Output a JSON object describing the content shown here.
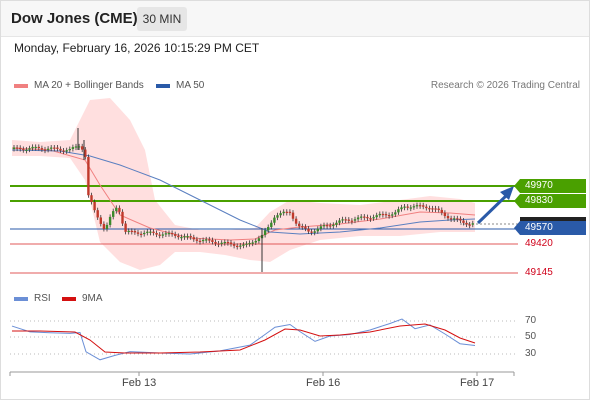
{
  "header": {
    "title": "Dow Jones (CME)",
    "timeframe": "30 MIN",
    "datetime": "Monday, February 16, 2026 10:15:29 PM CET"
  },
  "legend": {
    "bollinger": "MA 20 + Bollinger Bands",
    "ma50": "MA 50",
    "copyright": "Research © 2026 Trading Central",
    "rsi": "RSI",
    "rsi_ma": "9MA"
  },
  "price_levels": {
    "r1": "49970",
    "r2": "49830",
    "current": "49570",
    "s1": "49420",
    "s2": "49145"
  },
  "rsi_levels": [
    "70",
    "50",
    "30"
  ],
  "x_axis": [
    "Feb 13",
    "Feb 16",
    "Feb 17"
  ],
  "colors": {
    "resistance": "#4aa000",
    "pivot": "#2a5aa8",
    "support": "#e05a5a",
    "candle_up": "#3a8a2a",
    "candle_down": "#c0392b",
    "bollinger_fill": "#ffd9d9",
    "rsi": "#6b8fd6",
    "rsi_ma": "#d41010",
    "arrow": "#2a5aa8"
  }
}
